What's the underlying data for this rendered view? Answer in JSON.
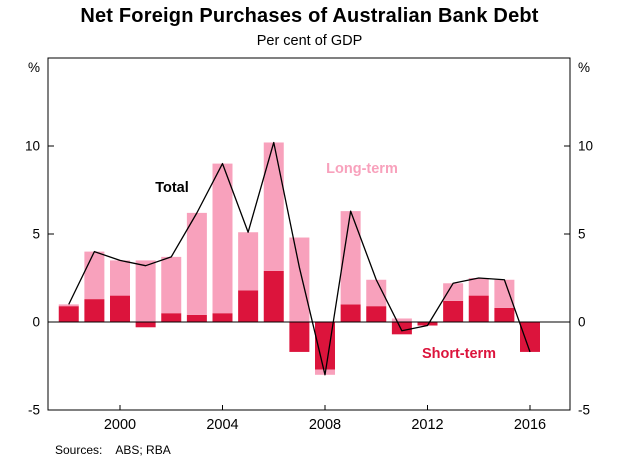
{
  "footer": {
    "sources_label": "Sources:",
    "sources_value": "ABS; RBA"
  },
  "chart_data": {
    "type": "bar",
    "stacked": true,
    "title": "Net Foreign Purchases of Australian Bank Debt",
    "subtitle": "Per cent of GDP",
    "unit_left": "%",
    "unit_right": "%",
    "ylim": [
      -5,
      15
    ],
    "yticks": [
      10,
      5,
      0,
      -5
    ],
    "xticks": [
      2000,
      2004,
      2008,
      2012,
      2016
    ],
    "grid": false,
    "legend": "inline-annotations",
    "categories": [
      1998,
      1999,
      2000,
      2001,
      2002,
      2003,
      2004,
      2005,
      2006,
      2007,
      2008,
      2009,
      2010,
      2011,
      2012,
      2013,
      2014,
      2015,
      2016
    ],
    "series": [
      {
        "name": "Short-term",
        "color": "#DC143C",
        "values": [
          0.9,
          1.3,
          1.5,
          -0.3,
          0.5,
          0.4,
          0.5,
          1.8,
          2.9,
          -1.7,
          -2.7,
          1.0,
          0.9,
          -0.7,
          -0.2,
          1.2,
          1.5,
          0.8,
          -1.7
        ]
      },
      {
        "name": "Long-term",
        "color": "#F8A1BC",
        "values": [
          0.1,
          2.7,
          2.0,
          3.5,
          3.2,
          5.8,
          8.5,
          3.3,
          7.3,
          4.8,
          -0.3,
          5.3,
          1.5,
          0.2,
          0.0,
          1.0,
          1.0,
          1.6,
          0.0
        ]
      }
    ],
    "line_series": {
      "name": "Total",
      "color": "#000000",
      "values": [
        1.0,
        4.0,
        3.5,
        3.2,
        3.7,
        6.2,
        9.0,
        5.1,
        10.2,
        3.1,
        -3.0,
        6.3,
        2.4,
        -0.5,
        -0.2,
        2.2,
        2.5,
        2.4,
        -1.7
      ]
    },
    "annotations": [
      {
        "text": "Total",
        "color": "#000000"
      },
      {
        "text": "Long-term",
        "color": "#F8A1BC"
      },
      {
        "text": "Short-term",
        "color": "#DC143C"
      }
    ]
  }
}
